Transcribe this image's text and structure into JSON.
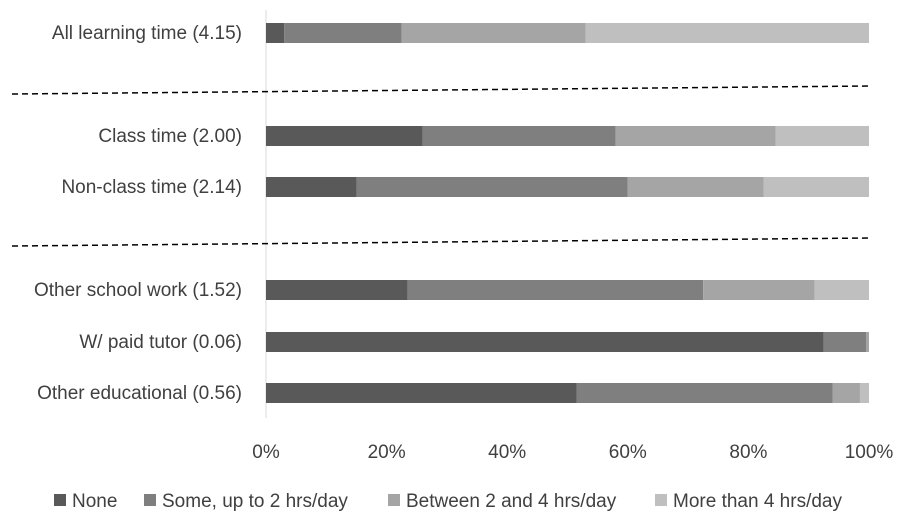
{
  "chart_data": {
    "type": "bar",
    "orientation": "horizontal",
    "stacked": true,
    "categories": [
      "All learning time (4.15)",
      "Class time (2.00)",
      "Non-class time (2.14)",
      "Other school work (1.52)",
      "W/ paid tutor (0.06)",
      "Other educational (0.56)"
    ],
    "series": [
      {
        "name": "None",
        "color": "#595959",
        "values": [
          3,
          26,
          15,
          23.5,
          92.5,
          51.5
        ]
      },
      {
        "name": "Some, up to 2 hrs/day",
        "color": "#7f7f7f",
        "values": [
          19.5,
          32,
          45,
          49,
          7,
          42.5
        ]
      },
      {
        "name": "Between 2 and 4 hrs/day",
        "color": "#a5a5a5",
        "values": [
          30.5,
          26.5,
          22.5,
          18.5,
          0.5,
          4.5
        ]
      },
      {
        "name": "More than 4 hrs/day",
        "color": "#bfbfbf",
        "values": [
          47,
          15.5,
          17.5,
          9,
          0,
          1.5
        ]
      }
    ],
    "x_ticks": [
      "0%",
      "20%",
      "40%",
      "60%",
      "80%",
      "100%"
    ],
    "xlim": [
      0,
      100
    ],
    "group_separators_after": [
      "All learning time (4.15)",
      "Non-class time (2.14)"
    ],
    "legend_position": "bottom",
    "grid": false
  }
}
